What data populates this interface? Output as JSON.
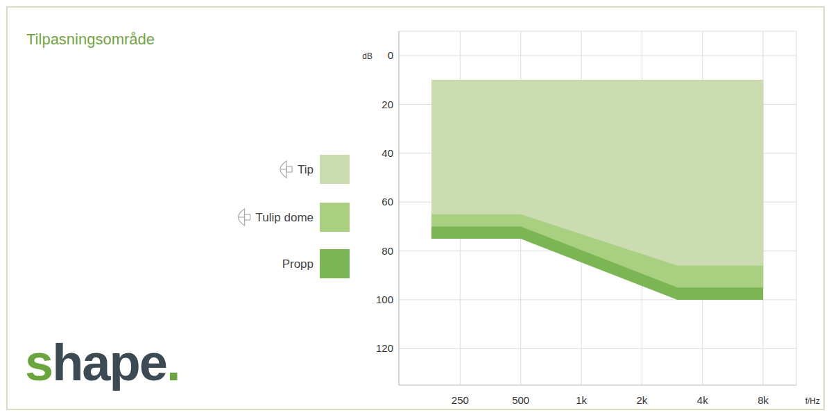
{
  "chart_data": {
    "type": "area",
    "title": "Tilpasningsområde",
    "logo": "shape.",
    "x_label": "f/Hz",
    "y_label": "dB",
    "log": "x",
    "grid": true,
    "legend": "left",
    "xlim": [
      124,
      11700
    ],
    "ylim": [
      -10,
      135
    ],
    "xticks": [
      250,
      500,
      {
        "value": 1000,
        "label": "1k"
      },
      {
        "value": 2000,
        "label": "2k"
      },
      {
        "value": 4000,
        "label": "4k"
      },
      {
        "value": 8000,
        "label": "8k"
      }
    ],
    "yticks": [
      0,
      20,
      40,
      60,
      80,
      100,
      120
    ],
    "series": [
      {
        "name": "Tip",
        "color": "#cadcb0",
        "x": [
          180,
          500,
          3000,
          8000
        ],
        "values": [
          65,
          65,
          86,
          86
        ],
        "top": [
          10,
          10,
          10,
          10
        ]
      },
      {
        "name": "Tulip dome",
        "color": "#a9cf80",
        "x": [
          180,
          500,
          3000,
          8000
        ],
        "values": [
          70,
          70,
          95,
          95
        ],
        "top": [
          10,
          10,
          10,
          10
        ]
      },
      {
        "name": "Propp",
        "color": "#7cb554",
        "x": [
          180,
          500,
          3000,
          8000
        ],
        "values": [
          75,
          75,
          100,
          100
        ],
        "top": [
          10,
          10,
          10,
          10
        ]
      }
    ]
  }
}
